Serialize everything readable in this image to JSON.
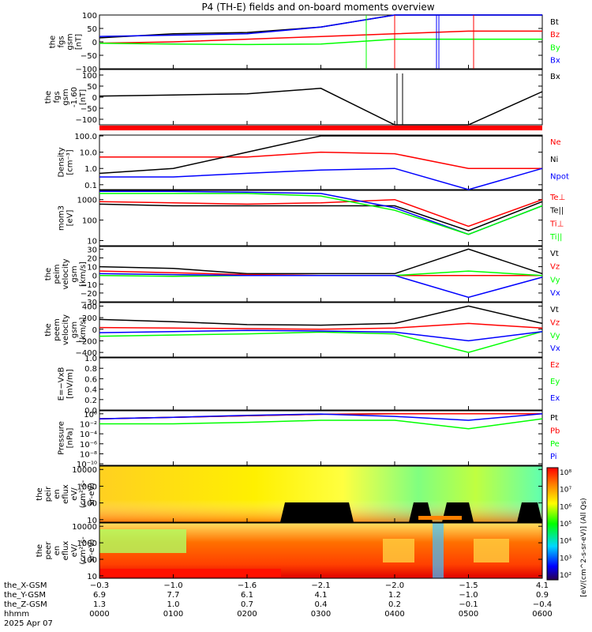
{
  "title": "P4 (TH-E) fields and on-board moments overview",
  "colors": {
    "black": "#000000",
    "red": "#ff0000",
    "green": "#00ff00",
    "blue": "#0000ff"
  },
  "panels": [
    {
      "id": "p1",
      "ylabel": [
        "the",
        "fgs",
        "gsm",
        "[nT]"
      ],
      "yticks": [
        {
          "v": 100,
          "label": "100"
        },
        {
          "v": 50,
          "label": "50"
        },
        {
          "v": 0,
          "label": "0"
        },
        {
          "v": -50,
          "label": "−50"
        },
        {
          "v": -100,
          "label": "−100"
        }
      ],
      "ylim": [
        -100,
        100
      ],
      "log": false,
      "legend": [
        {
          "text": "Bt",
          "color": "#000000"
        },
        {
          "text": "Bz",
          "color": "#ff0000"
        },
        {
          "text": "By",
          "color": "#00ff00"
        },
        {
          "text": "Bx",
          "color": "#0000ff"
        }
      ]
    },
    {
      "id": "p2",
      "ylabel": [
        "the",
        "fgs",
        "gsm",
        "-1.60",
        "[nT]"
      ],
      "yticks": [
        {
          "v": 100,
          "label": "100"
        },
        {
          "v": 50,
          "label": "50"
        },
        {
          "v": 0,
          "label": "0"
        },
        {
          "v": -50,
          "label": "−50"
        },
        {
          "v": -100,
          "label": "−100"
        }
      ],
      "ylim": [
        -125,
        125
      ],
      "log": false,
      "legend": [
        {
          "text": "Bx",
          "color": "#000000"
        }
      ]
    },
    {
      "id": "p3",
      "ylabel": [
        "Density",
        "[cm⁻³]"
      ],
      "yticks": [
        {
          "v": 2,
          "label": "100.0"
        },
        {
          "v": 1,
          "label": "10.0"
        },
        {
          "v": 0,
          "label": "1.0"
        },
        {
          "v": -1,
          "label": "0.1"
        }
      ],
      "ylim": [
        -1.3,
        2.05
      ],
      "log": true,
      "legend": [
        {
          "text": "Ne",
          "color": "#ff0000"
        },
        {
          "text": "Ni",
          "color": "#000000"
        },
        {
          "text": "Npot",
          "color": "#0000ff"
        }
      ]
    },
    {
      "id": "p4",
      "ylabel": [
        "mom3",
        "[eV]"
      ],
      "yticks": [
        {
          "v": 3,
          "label": "1000"
        },
        {
          "v": 2,
          "label": "100"
        },
        {
          "v": 1,
          "label": "10"
        }
      ],
      "ylim": [
        0.75,
        3.45
      ],
      "log": true,
      "legend": [
        {
          "text": "Te⊥",
          "color": "#ff0000"
        },
        {
          "text": "Te||",
          "color": "#000000"
        },
        {
          "text": "Ti⊥",
          "color": "#ff0000"
        },
        {
          "text": "Ti||",
          "color": "#00ff00"
        }
      ]
    },
    {
      "id": "p5",
      "ylabel": [
        "the",
        "peim",
        "velocity",
        "gsm",
        "[km/s]"
      ],
      "yticks": [
        {
          "v": 30,
          "label": "30"
        },
        {
          "v": 20,
          "label": "20"
        },
        {
          "v": 10,
          "label": "10"
        },
        {
          "v": 0,
          "label": "0"
        },
        {
          "v": -10,
          "label": "−10"
        },
        {
          "v": -20,
          "label": "−20"
        },
        {
          "v": -30,
          "label": "−30"
        }
      ],
      "ylim": [
        -30,
        33
      ],
      "log": false,
      "legend": [
        {
          "text": "Vt",
          "color": "#000000"
        },
        {
          "text": "Vz",
          "color": "#ff0000"
        },
        {
          "text": "Vy",
          "color": "#00ff00"
        },
        {
          "text": "Vx",
          "color": "#0000ff"
        }
      ]
    },
    {
      "id": "p6",
      "ylabel": [
        "the",
        "peem",
        "velocity",
        "gsm",
        "[km/s]"
      ],
      "yticks": [
        {
          "v": 400,
          "label": "400"
        },
        {
          "v": 200,
          "label": "200"
        },
        {
          "v": 0,
          "label": "0"
        },
        {
          "v": -200,
          "label": "−200"
        },
        {
          "v": -400,
          "label": "−400"
        }
      ],
      "ylim": [
        -480,
        460
      ],
      "log": false,
      "legend": [
        {
          "text": "Vt",
          "color": "#000000"
        },
        {
          "text": "Vz",
          "color": "#ff0000"
        },
        {
          "text": "Vy",
          "color": "#00ff00"
        },
        {
          "text": "Vx",
          "color": "#0000ff"
        }
      ]
    },
    {
      "id": "p7",
      "ylabel": [
        "E=−VxB",
        "[mV/m]"
      ],
      "yticks": [
        {
          "v": 1.0,
          "label": "1.0"
        },
        {
          "v": 0.8,
          "label": "0.8"
        },
        {
          "v": 0.6,
          "label": "0.6"
        },
        {
          "v": 0.4,
          "label": "0.4"
        },
        {
          "v": 0.2,
          "label": "0.2"
        },
        {
          "v": 0.0,
          "label": "0.0"
        }
      ],
      "ylim": [
        0,
        1
      ],
      "log": false,
      "legend": [
        {
          "text": "Ez",
          "color": "#ff0000"
        },
        {
          "text": "Ey",
          "color": "#00ff00"
        },
        {
          "text": "Ex",
          "color": "#0000ff"
        }
      ]
    },
    {
      "id": "p8",
      "ylabel": [
        "Pressure",
        "[nPa]"
      ],
      "yticks": [
        {
          "v": 0,
          "label": "10⁰"
        },
        {
          "v": -2,
          "label": "10⁻²"
        },
        {
          "v": -4,
          "label": "10⁻⁴"
        },
        {
          "v": -6,
          "label": "10⁻⁶"
        },
        {
          "v": -8,
          "label": "10⁻⁸"
        },
        {
          "v": -10,
          "label": "10⁻¹⁰"
        }
      ],
      "ylim": [
        -10.3,
        0.6
      ],
      "log": true,
      "legend": [
        {
          "text": "Pt",
          "color": "#000000"
        },
        {
          "text": "Pb",
          "color": "#ff0000"
        },
        {
          "text": "Pe",
          "color": "#00ff00"
        },
        {
          "text": "Pi",
          "color": "#0000ff"
        }
      ]
    },
    {
      "id": "p9",
      "ylabel": [
        "the",
        "peir",
        "en",
        "eflux",
        "eV/",
        "(cm²-s-",
        "sr-eV)"
      ],
      "yticks": [
        {
          "v": 4,
          "label": "10000"
        },
        {
          "v": 3,
          "label": "1000"
        },
        {
          "v": 2,
          "label": "100"
        },
        {
          "v": 1,
          "label": "10"
        }
      ],
      "ylim": [
        0.85,
        4.2
      ],
      "log": true,
      "legend": []
    },
    {
      "id": "p10",
      "ylabel": [
        "the",
        "peer",
        "en",
        "eflux",
        "eV/",
        "(cm²-s-",
        "sr-eV)"
      ],
      "yticks": [
        {
          "v": 4,
          "label": "10000"
        },
        {
          "v": 3,
          "label": "1000"
        },
        {
          "v": 2,
          "label": "100"
        },
        {
          "v": 1,
          "label": "10"
        }
      ],
      "ylim": [
        0.85,
        4.2
      ],
      "log": true,
      "legend": []
    }
  ],
  "colorbar": {
    "ticks": [
      "10⁸",
      "10⁷",
      "10⁶",
      "10⁵",
      "10⁴",
      "10³",
      "10²"
    ],
    "label": "[eV/(cm^2-s-sr-eV)] (All Qs)"
  },
  "footer": {
    "row_labels": [
      "the_X-GSM",
      "the_Y-GSM",
      "the_Z-GSM",
      "hhmm",
      "2025 Apr 07"
    ],
    "columns": [
      {
        "x": "−0.3",
        "y": "6.9",
        "z": "1.3",
        "t": "0000"
      },
      {
        "x": "−1.0",
        "y": "7.7",
        "z": "1.0",
        "t": "0100"
      },
      {
        "x": "−1.6",
        "y": "6.1",
        "z": "0.7",
        "t": "0200"
      },
      {
        "x": "−2.1",
        "y": "4.1",
        "z": "0.4",
        "t": "0300"
      },
      {
        "x": "−2.0",
        "y": "1.2",
        "z": "0.2",
        "t": "0400"
      },
      {
        "x": "−1.5",
        "y": "−1.0",
        "z": "−0.1",
        "t": "0500"
      },
      {
        "x": "4.1",
        "y": "0.9",
        "z": "−0.4",
        "t": "0600"
      }
    ]
  },
  "chart_data": {
    "type": "line",
    "title": "P4 (TH-E) fields and on-board moments overview",
    "x": [
      "0000",
      "0100",
      "0200",
      "0300",
      "0400",
      "0500",
      "0600"
    ],
    "xlabel": "hhmm",
    "series": [
      {
        "panel": "p1",
        "name": "Bt",
        "values": [
          15,
          30,
          35,
          55,
          100,
          100,
          100
        ]
      },
      {
        "panel": "p1",
        "name": "Bz",
        "values": [
          -5,
          0,
          10,
          20,
          30,
          40,
          40
        ]
      },
      {
        "panel": "p1",
        "name": "By",
        "values": [
          -5,
          -8,
          -10,
          -8,
          10,
          10,
          10
        ]
      },
      {
        "panel": "p1",
        "name": "Bx",
        "values": [
          20,
          25,
          30,
          55,
          100,
          100,
          100
        ]
      },
      {
        "panel": "p2",
        "name": "Bx",
        "values": [
          5,
          10,
          15,
          40,
          -125,
          -125,
          25
        ]
      },
      {
        "panel": "p3",
        "name": "Ne",
        "values": [
          5,
          5,
          5,
          10,
          8,
          1,
          1
        ]
      },
      {
        "panel": "p3",
        "name": "Ni",
        "values": [
          0.5,
          1,
          10,
          100,
          100,
          100,
          100
        ]
      },
      {
        "panel": "p3",
        "name": "Npot",
        "values": [
          0.3,
          0.3,
          0.5,
          0.8,
          1,
          0.05,
          1
        ]
      },
      {
        "panel": "p4",
        "name": "Te⊥",
        "values": [
          800,
          700,
          600,
          700,
          1000,
          50,
          1000
        ]
      },
      {
        "panel": "p4",
        "name": "Te||",
        "values": [
          600,
          500,
          500,
          500,
          500,
          30,
          800
        ]
      },
      {
        "panel": "p4",
        "name": "Ti⊥",
        "values": [
          2500,
          2500,
          2300,
          2000,
          400,
          20,
          500
        ]
      },
      {
        "panel": "p4",
        "name": "Ti||",
        "values": [
          2000,
          2000,
          2000,
          1500,
          300,
          20,
          500
        ]
      },
      {
        "panel": "p5",
        "name": "Vt",
        "values": [
          10,
          8,
          2,
          2,
          2,
          30,
          2
        ]
      },
      {
        "panel": "p5",
        "name": "Vz",
        "values": [
          5,
          3,
          1,
          0,
          0,
          0,
          0
        ]
      },
      {
        "panel": "p5",
        "name": "Vy",
        "values": [
          0,
          -1,
          0,
          0,
          0,
          5,
          0
        ]
      },
      {
        "panel": "p5",
        "name": "Vx",
        "values": [
          2,
          1,
          0,
          0,
          0,
          -25,
          -2
        ]
      },
      {
        "panel": "p6",
        "name": "Vt",
        "values": [
          170,
          130,
          80,
          70,
          100,
          400,
          100
        ]
      },
      {
        "panel": "p6",
        "name": "Vz",
        "values": [
          30,
          20,
          10,
          0,
          20,
          100,
          20
        ]
      },
      {
        "panel": "p6",
        "name": "Vy",
        "values": [
          -120,
          -100,
          -80,
          -50,
          -80,
          -400,
          -40
        ]
      },
      {
        "panel": "p6",
        "name": "Vx",
        "values": [
          -60,
          -40,
          -20,
          -30,
          -50,
          -200,
          -40
        ]
      },
      {
        "panel": "p8",
        "name": "Pt",
        "values": [
          0.1,
          0.2,
          0.4,
          0.8,
          1,
          1,
          1
        ]
      },
      {
        "panel": "p8",
        "name": "Pb",
        "values": [
          0.1,
          0.2,
          0.4,
          0.8,
          1,
          1,
          1
        ]
      },
      {
        "panel": "p8",
        "name": "Pe",
        "values": [
          0.01,
          0.01,
          0.02,
          0.05,
          0.05,
          0.001,
          0.1
        ]
      },
      {
        "panel": "p8",
        "name": "Pi",
        "values": [
          0.1,
          0.2,
          0.5,
          0.9,
          0.3,
          0.05,
          1
        ]
      }
    ]
  }
}
